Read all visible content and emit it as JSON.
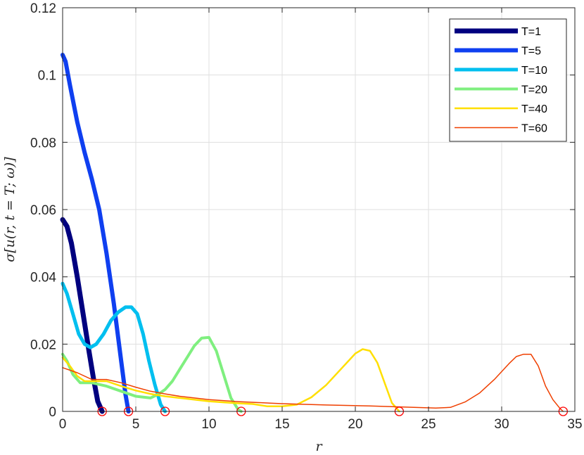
{
  "chart_data": {
    "type": "line",
    "title": "",
    "xlabel": "r",
    "ylabel": "σ[u(r, t = T; ω)]",
    "xlim": [
      0,
      35
    ],
    "ylim": [
      0,
      0.12
    ],
    "xticks": [
      "0",
      "5",
      "10",
      "15",
      "20",
      "25",
      "30",
      "35"
    ],
    "yticks": [
      "0",
      "0.02",
      "0.04",
      "0.06",
      "0.08",
      "0.1",
      "0.12"
    ],
    "grid": true,
    "legend_position": "top-right",
    "series": [
      {
        "name": "T=1",
        "color": "#00007f",
        "x": [
          0,
          0.3,
          0.6,
          1.0,
          1.4,
          1.8,
          2.1,
          2.4,
          2.7
        ],
        "y": [
          0.057,
          0.055,
          0.05,
          0.04,
          0.029,
          0.018,
          0.01,
          0.003,
          0
        ]
      },
      {
        "name": "T=5",
        "color": "#0f3ff0",
        "x": [
          0,
          0.2,
          0.5,
          1.0,
          1.5,
          2.0,
          2.5,
          3.0,
          3.5,
          4.0,
          4.3,
          4.5
        ],
        "y": [
          0.106,
          0.104,
          0.097,
          0.086,
          0.077,
          0.069,
          0.06,
          0.047,
          0.032,
          0.015,
          0.005,
          0
        ]
      },
      {
        "name": "T=10",
        "color": "#00bfef",
        "x": [
          0,
          0.3,
          0.7,
          1.1,
          1.5,
          1.9,
          2.3,
          2.8,
          3.3,
          3.8,
          4.3,
          4.7,
          5.1,
          5.5,
          5.9,
          6.3,
          6.7,
          7.0
        ],
        "y": [
          0.038,
          0.035,
          0.029,
          0.023,
          0.02,
          0.019,
          0.02,
          0.023,
          0.027,
          0.0295,
          0.031,
          0.031,
          0.029,
          0.023,
          0.015,
          0.008,
          0.002,
          0
        ]
      },
      {
        "name": "T=20",
        "color": "#7fef7f",
        "x": [
          0,
          0.3,
          0.7,
          1.2,
          2.0,
          3.0,
          4.0,
          5.0,
          6.0,
          6.5,
          7.0,
          7.5,
          8.0,
          8.5,
          9.0,
          9.5,
          10.0,
          10.5,
          11.0,
          11.5,
          12.0,
          12.2
        ],
        "y": [
          0.017,
          0.015,
          0.011,
          0.0085,
          0.0085,
          0.0075,
          0.006,
          0.0045,
          0.004,
          0.005,
          0.0065,
          0.009,
          0.0125,
          0.016,
          0.0195,
          0.0218,
          0.022,
          0.018,
          0.011,
          0.004,
          0.0005,
          0
        ]
      },
      {
        "name": "T=40",
        "color": "#ffdf00",
        "x": [
          0,
          0.5,
          1.0,
          1.5,
          2.0,
          3.0,
          4.0,
          5.0,
          6.0,
          7.0,
          8.0,
          9.0,
          10.0,
          11.0,
          12.0,
          13.0,
          14.0,
          15.0,
          16.0,
          17.0,
          18.0,
          19.0,
          20.0,
          20.5,
          21.0,
          21.5,
          22.0,
          22.5,
          23.0
        ],
        "y": [
          0.016,
          0.0135,
          0.0105,
          0.009,
          0.009,
          0.009,
          0.0075,
          0.0062,
          0.0052,
          0.0045,
          0.004,
          0.0035,
          0.003,
          0.0027,
          0.0024,
          0.0022,
          0.0015,
          0.0015,
          0.002,
          0.0042,
          0.0078,
          0.0125,
          0.0172,
          0.0185,
          0.018,
          0.0145,
          0.0085,
          0.0025,
          0
        ]
      },
      {
        "name": "T=60",
        "color": "#ef3f00",
        "x": [
          0,
          1.0,
          2.0,
          3.0,
          4.0,
          5.0,
          6.0,
          7.0,
          8.0,
          10.0,
          12.0,
          15.0,
          18.0,
          21.0,
          24.0,
          25.5,
          26.5,
          27.5,
          28.5,
          29.5,
          30.5,
          31.0,
          31.5,
          32.0,
          32.5,
          33.0,
          33.5,
          34.0,
          34.2
        ],
        "y": [
          0.013,
          0.0115,
          0.0095,
          0.0095,
          0.0085,
          0.0072,
          0.006,
          0.0052,
          0.0045,
          0.0035,
          0.0029,
          0.0023,
          0.0019,
          0.0016,
          0.0012,
          0.001,
          0.0012,
          0.0028,
          0.0055,
          0.0095,
          0.0142,
          0.0163,
          0.017,
          0.017,
          0.0135,
          0.0075,
          0.0035,
          0.0008,
          0
        ]
      }
    ],
    "markers": {
      "label": "",
      "color": "#ff0000",
      "x": [
        2.7,
        4.5,
        7.0,
        12.2,
        23.0,
        34.2
      ],
      "y": [
        0,
        0,
        0,
        0,
        0,
        0
      ]
    }
  }
}
